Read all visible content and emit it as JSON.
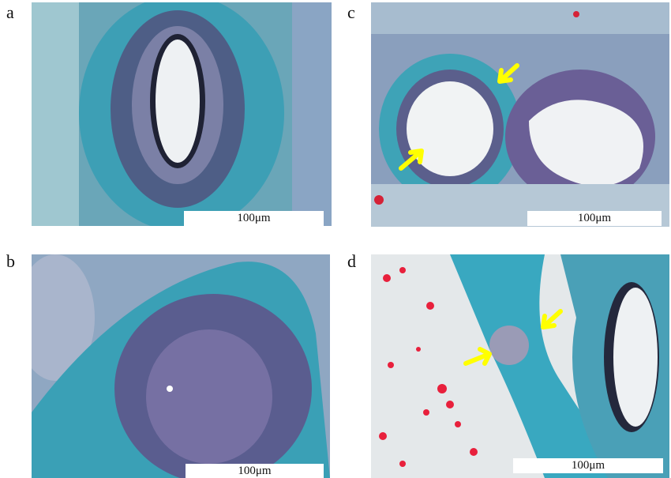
{
  "panels": [
    {
      "label": "a",
      "scale_bar": "100μm",
      "arrows": 0
    },
    {
      "label": "b",
      "scale_bar": "100μm",
      "arrows": 0
    },
    {
      "label": "c",
      "scale_bar": "100μm",
      "arrows": 2
    },
    {
      "label": "d",
      "scale_bar": "100μm",
      "arrows": 2
    }
  ],
  "colors": {
    "collagen": "#3fa9bd",
    "nuclei": "#5a4f86",
    "erythrocyte": "#e0203a",
    "arrow": "#ffff00",
    "background": "#e8ecee"
  }
}
